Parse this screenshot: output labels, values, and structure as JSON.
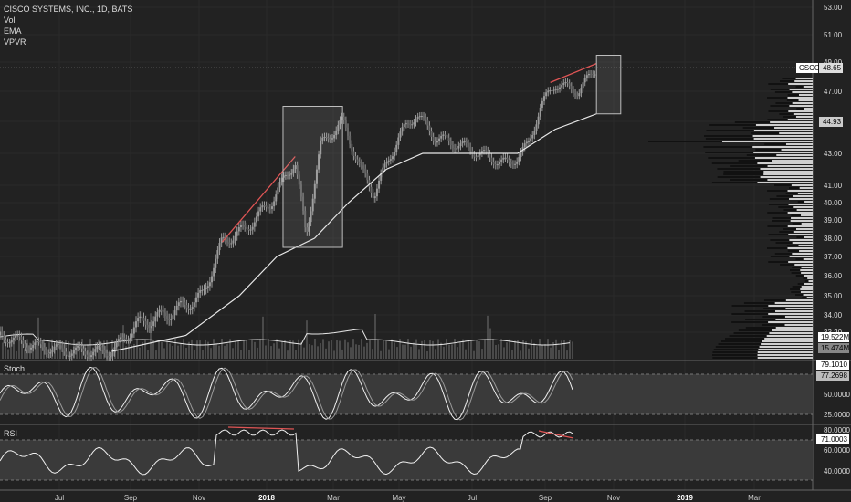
{
  "header": {
    "symbol_title": "CISCO SYSTEMS, INC., 1D, BATS",
    "studies": [
      "Vol",
      "EMA",
      "VPVR"
    ]
  },
  "colors": {
    "background": "#222222",
    "grid": "#2a2a2a",
    "candle": "#9a9a9a",
    "ema": "#e8e8e8",
    "trendline": "#e05555",
    "box": "#bdbdbd",
    "volume": "#4a4a4a",
    "vpvr_up": "#cfcfcf",
    "vpvr_down": "#111111"
  },
  "price_axis": {
    "ticks": [
      "53.00",
      "51.00",
      "49.00",
      "47.00",
      "45.00",
      "43.00",
      "41.00",
      "40.00",
      "39.00",
      "38.00",
      "37.00",
      "36.00",
      "35.00",
      "34.00",
      "33.20"
    ],
    "last_price_symbol": "CSCO",
    "last_price": "48.65",
    "poc_price": "44.93",
    "vol_ma_label": "19.522M",
    "vol_label": "15.474M"
  },
  "stoch": {
    "label": "Stoch",
    "value_k": "79.1010",
    "value_d": "77.2698",
    "ticks": [
      "50.0000",
      "25.0000"
    ]
  },
  "rsi": {
    "label": "RSI",
    "value": "71.0003",
    "ticks": [
      "80.0000",
      "60.0000",
      "40.0000"
    ]
  },
  "time_axis": [
    "Jul",
    "Sep",
    "Nov",
    "2018",
    "Mar",
    "May",
    "Jul",
    "Sep",
    "Nov",
    "2019",
    "Mar"
  ],
  "chart_data": {
    "type": "candlestick",
    "title": "CISCO SYSTEMS, INC., 1D, BATS",
    "x_range": [
      "2017-06",
      "2019-04"
    ],
    "ylim": [
      32.5,
      54
    ],
    "price_path": [
      [
        "2017-06-01",
        33.0
      ],
      [
        "2017-07-01",
        32.3
      ],
      [
        "2017-08-01",
        32.0
      ],
      [
        "2017-09-01",
        32.0
      ],
      [
        "2017-09-20",
        33.5
      ],
      [
        "2017-10-15",
        34.0
      ],
      [
        "2017-11-01",
        34.5
      ],
      [
        "2017-11-15",
        35.0
      ],
      [
        "2017-12-01",
        37.8
      ],
      [
        "2017-12-20",
        38.5
      ],
      [
        "2018-01-10",
        40.0
      ],
      [
        "2018-01-30",
        42.5
      ],
      [
        "2018-02-08",
        38.0
      ],
      [
        "2018-02-20",
        43.5
      ],
      [
        "2018-03-10",
        45.0
      ],
      [
        "2018-03-25",
        42.0
      ],
      [
        "2018-04-05",
        40.5
      ],
      [
        "2018-04-25",
        44.0
      ],
      [
        "2018-05-10",
        45.5
      ],
      [
        "2018-05-25",
        44.0
      ],
      [
        "2018-06-15",
        43.5
      ],
      [
        "2018-07-10",
        42.7
      ],
      [
        "2018-07-25",
        42.3
      ],
      [
        "2018-08-10",
        43.5
      ],
      [
        "2018-08-20",
        46.0
      ],
      [
        "2018-09-01",
        47.5
      ],
      [
        "2018-09-20",
        47.0
      ],
      [
        "2018-10-05",
        48.6
      ]
    ],
    "ema_path": [
      [
        "2017-09-01",
        32.0
      ],
      [
        "2017-11-01",
        33.0
      ],
      [
        "2017-12-15",
        35.0
      ],
      [
        "2018-01-15",
        37.0
      ],
      [
        "2018-02-15",
        38.0
      ],
      [
        "2018-03-15",
        40.0
      ],
      [
        "2018-04-15",
        42.0
      ],
      [
        "2018-05-15",
        43.0
      ],
      [
        "2018-07-01",
        43.0
      ],
      [
        "2018-08-01",
        43.0
      ],
      [
        "2018-09-01",
        44.5
      ],
      [
        "2018-10-05",
        45.5
      ]
    ],
    "annotations": [
      {
        "type": "trendline",
        "from": [
          "2017-12-01",
          37.8
        ],
        "to": [
          "2018-01-30",
          42.8
        ]
      },
      {
        "type": "trendline",
        "from": [
          "2018-08-28",
          47.6
        ],
        "to": [
          "2018-10-05",
          48.9
        ]
      },
      {
        "type": "rectangle",
        "from": [
          "2018-01-20",
          37.5
        ],
        "to": [
          "2018-03-10",
          46.0
        ]
      },
      {
        "type": "rectangle",
        "from": [
          "2018-10-05",
          45.5
        ],
        "to": [
          "2018-10-25",
          49.5
        ]
      }
    ]
  }
}
